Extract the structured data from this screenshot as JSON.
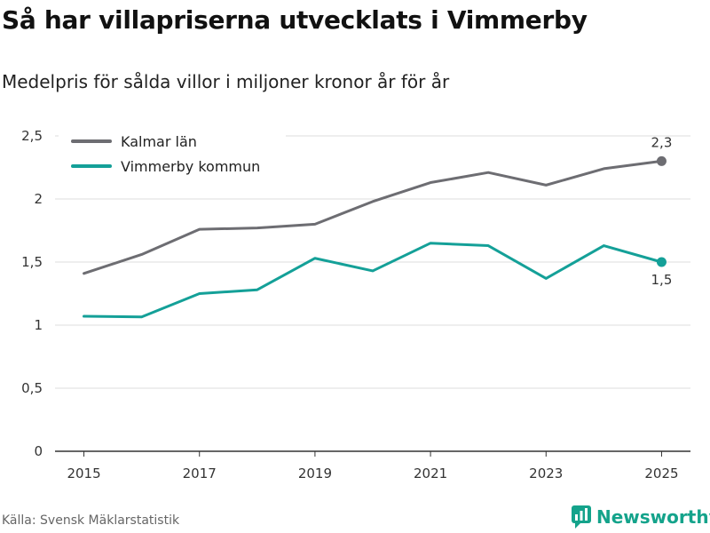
{
  "header": {
    "title": "Så har villapriserna utvecklats i Vimmerby",
    "subtitle": "Medelpris för sålda villor i miljoner kronor år för år"
  },
  "footer": {
    "source": "Källa: Svensk Mäklarstatistik",
    "brand": "Newsworthy"
  },
  "chart_data": {
    "type": "line",
    "title": "Så har villapriserna utvecklats i Vimmerby",
    "subtitle": "Medelpris för sålda villor i miljoner kronor år för år",
    "xlabel": "",
    "ylabel": "",
    "x": [
      2015,
      2016,
      2017,
      2018,
      2019,
      2020,
      2021,
      2022,
      2023,
      2024,
      2025
    ],
    "xlim": [
      2014.5,
      2025.5
    ],
    "ylim": [
      0,
      2.5
    ],
    "x_ticks": [
      2015,
      2017,
      2019,
      2021,
      2023,
      2025
    ],
    "x_tick_labels": [
      "2015",
      "2017",
      "2019",
      "2021",
      "2023",
      "2025"
    ],
    "y_ticks": [
      0,
      0.5,
      1,
      1.5,
      2,
      2.5
    ],
    "y_tick_labels": [
      "0",
      "0,5",
      "1",
      "1,5",
      "2",
      "2,5"
    ],
    "grid": true,
    "legend_position": "top-left",
    "series": [
      {
        "name": "Kalmar län",
        "color": "#6d6d72",
        "values": [
          1.41,
          1.56,
          1.76,
          1.77,
          1.8,
          1.98,
          2.13,
          2.21,
          2.11,
          2.24,
          2.3
        ],
        "end_label": "2,3"
      },
      {
        "name": "Vimmerby kommun",
        "color": "#14a098",
        "values": [
          1.07,
          1.065,
          1.25,
          1.28,
          1.53,
          1.43,
          1.65,
          1.63,
          1.37,
          1.63,
          1.5
        ],
        "end_label": "1,5"
      }
    ]
  }
}
